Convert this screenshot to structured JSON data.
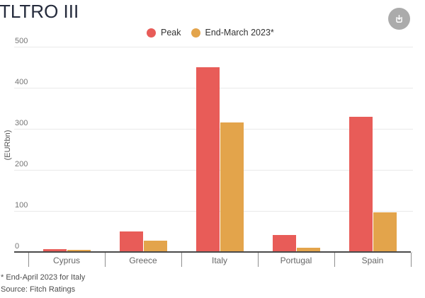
{
  "title": "TLTRO III",
  "download_button": {
    "icon": "download-icon"
  },
  "chart_data": {
    "type": "bar",
    "title": "TLTRO III",
    "categories": [
      "Cyprus",
      "Greece",
      "Italy",
      "Portugal",
      "Spain"
    ],
    "series": [
      {
        "name": "Peak",
        "color": "#E85C58",
        "values": [
          7,
          50,
          450,
          42,
          330
        ]
      },
      {
        "name": "End-March 2023*",
        "color": "#E3A44B",
        "values": [
          5,
          27,
          315,
          10,
          96
        ]
      }
    ],
    "xlabel": "",
    "ylabel": "(EURbn)",
    "ylim": [
      0,
      500
    ],
    "yticks": [
      0,
      100,
      200,
      300,
      400,
      500
    ],
    "grid": true,
    "legend_position": "top"
  },
  "footnotes": [
    "* End-April 2023 for Italy",
    "Source: Fitch Ratings"
  ],
  "colors": {
    "title_text": "#252b3c",
    "axis_line": "#4a4a4a",
    "gridline": "#e9e9e9",
    "tick_text": "#757575",
    "category_text": "#666666",
    "footnote_text": "#4d4d4d",
    "download_button_bg": "#ababab"
  }
}
